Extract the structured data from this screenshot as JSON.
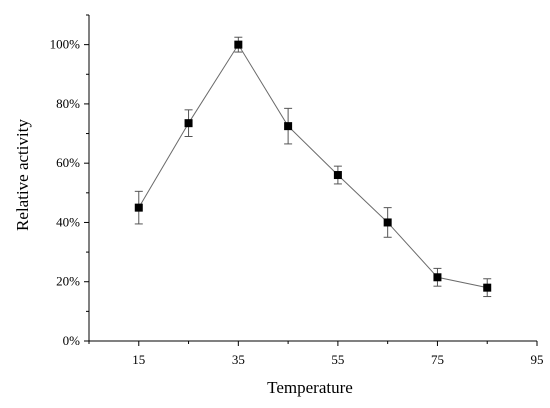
{
  "chart_data": {
    "type": "line",
    "xlabel": "Temperature",
    "ylabel": "Relative activity",
    "xlim": [
      5,
      95
    ],
    "ylim": [
      0,
      1.1
    ],
    "x_ticks": [
      15,
      35,
      55,
      75,
      95
    ],
    "x_tick_labels": [
      "15",
      "35",
      "55",
      "75",
      "95"
    ],
    "y_ticks": [
      0,
      0.2,
      0.4,
      0.6,
      0.8,
      1.0
    ],
    "y_tick_labels": [
      "0%",
      "20%",
      "40%",
      "60%",
      "80%",
      "100%"
    ],
    "grid": false,
    "series": [
      {
        "x": [
          15,
          25,
          35,
          45,
          55,
          65,
          75,
          85
        ],
        "y": [
          0.45,
          0.735,
          1.0,
          0.725,
          0.56,
          0.4,
          0.215,
          0.18
        ],
        "error": [
          0.055,
          0.045,
          0.025,
          0.06,
          0.03,
          0.05,
          0.03,
          0.03
        ]
      }
    ]
  }
}
